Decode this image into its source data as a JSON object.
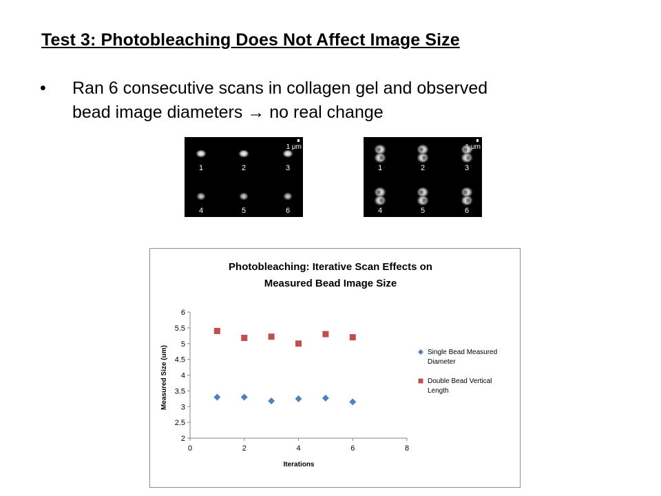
{
  "slide": {
    "title": "Test 3: Photobleaching Does Not Affect Image Size",
    "bullet_symbol": "•",
    "bullet_line1": "Ran 6 consecutive scans in collagen gel and observed",
    "bullet_line2_start": "bead image diameters ",
    "bullet_arrow": "→",
    "bullet_line2_end": " no real change"
  },
  "micrographs": [
    {
      "scale_label": "1 μm",
      "labels": [
        "1",
        "2",
        "3",
        "4",
        "5",
        "6"
      ],
      "bead_type": "single"
    },
    {
      "scale_label": "1 μm",
      "labels": [
        "1",
        "2",
        "3",
        "4",
        "5",
        "6"
      ],
      "bead_type": "double"
    }
  ],
  "chart_data": {
    "type": "scatter",
    "title_line1": "Photobleaching: Iterative Scan Effects on",
    "title_line2": "Measured Bead Image Size",
    "xlabel": "Iterations",
    "ylabel": "Measured Size (um)",
    "xlim": [
      0,
      8
    ],
    "ylim": [
      2,
      6
    ],
    "xticks": [
      "0",
      "2",
      "4",
      "6",
      "8"
    ],
    "yticks": [
      "2",
      "2.5",
      "3",
      "3.5",
      "4",
      "4.5",
      "5",
      "5.5",
      "6"
    ],
    "grid": false,
    "legend_position": "right",
    "series": [
      {
        "name_line1": "Single Bead Measured",
        "name_line2": "Diameter",
        "marker": "diamond",
        "color": "#4f81bd",
        "x": [
          1,
          2,
          3,
          4,
          5,
          6
        ],
        "y": [
          3.3,
          3.3,
          3.18,
          3.25,
          3.27,
          3.15
        ]
      },
      {
        "name_line1": "Double Bead Vertical",
        "name_line2": "Length",
        "marker": "square",
        "color": "#c0504d",
        "x": [
          1,
          2,
          3,
          4,
          5,
          6
        ],
        "y": [
          5.4,
          5.18,
          5.22,
          5.0,
          5.3,
          5.2
        ]
      }
    ]
  }
}
